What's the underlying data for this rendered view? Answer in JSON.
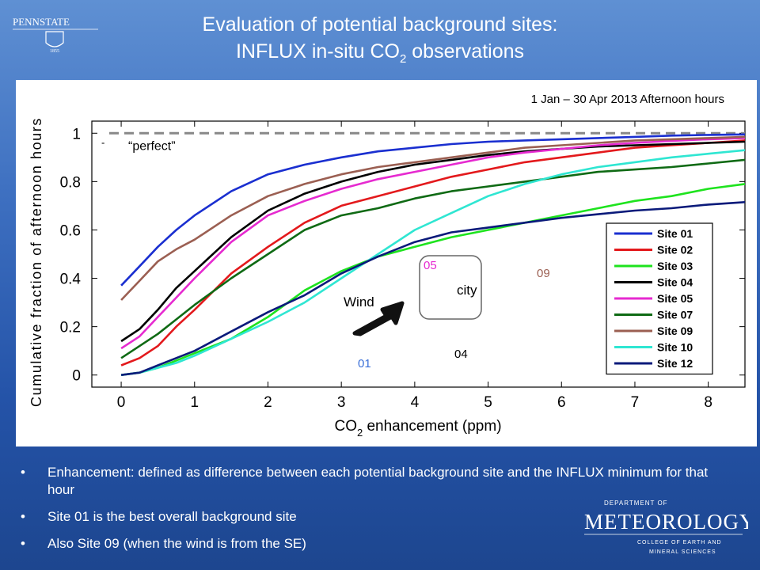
{
  "title": {
    "line1": "Evaluation of potential background sites:",
    "line2_pre": "INFLUX in-situ CO",
    "line2_sub": "2",
    "line2_post": " observations"
  },
  "logos": {
    "pennstate": "PENNSTATE",
    "pennstate_year": "1855",
    "met_dept": "DEPARTMENT OF",
    "met_name": "METEOROLOGY",
    "met_college1": "COLLEGE OF EARTH AND",
    "met_college2": "MINERAL SCIENCES"
  },
  "bullets": [
    "Enhancement: defined as difference between each potential background site and the INFLUX minimum for that hour",
    "Site 01 is the best overall background site",
    "Also Site 09 (when the wind is from the SE)"
  ],
  "chart_data": {
    "type": "line",
    "subtitle": "1 Jan – 30 Apr 2013 Afternoon hours",
    "xlabel_pre": "CO",
    "xlabel_sub": "2",
    "xlabel_post": " enhancement (ppm)",
    "ylabel": "Cumulative fraction of afternoon hours",
    "xlim": [
      -0.4,
      8.5
    ],
    "ylim": [
      -0.05,
      1.05
    ],
    "xticks": [
      0,
      1,
      2,
      3,
      4,
      5,
      6,
      7,
      8
    ],
    "yticks": [
      0,
      0.2,
      0.4,
      0.6,
      0.8,
      1
    ],
    "ytick_labels": [
      "0",
      "0.2",
      "0.4",
      "0.6",
      "0.8",
      "1"
    ],
    "perfect_label": "“perfect”",
    "perfect_dash": "-",
    "perfect_value": 1,
    "legend_position": "lower-right",
    "x": [
      0,
      0.25,
      0.5,
      0.75,
      1,
      1.5,
      2,
      2.5,
      3,
      3.5,
      4,
      4.5,
      5,
      5.5,
      6,
      6.5,
      7,
      7.5,
      8,
      8.5
    ],
    "series": [
      {
        "name": "Site 01",
        "color": "#1a2fd0",
        "values": [
          0.37,
          0.45,
          0.53,
          0.6,
          0.66,
          0.76,
          0.83,
          0.87,
          0.9,
          0.925,
          0.94,
          0.955,
          0.965,
          0.97,
          0.975,
          0.98,
          0.985,
          0.99,
          0.993,
          0.995
        ]
      },
      {
        "name": "Site 02",
        "color": "#e3191c",
        "values": [
          0.04,
          0.07,
          0.12,
          0.2,
          0.27,
          0.42,
          0.53,
          0.63,
          0.7,
          0.74,
          0.78,
          0.82,
          0.85,
          0.88,
          0.9,
          0.92,
          0.94,
          0.95,
          0.96,
          0.97
        ]
      },
      {
        "name": "Site 03",
        "color": "#1ee31e",
        "values": [
          0.0,
          0.01,
          0.03,
          0.06,
          0.09,
          0.15,
          0.24,
          0.35,
          0.43,
          0.49,
          0.53,
          0.57,
          0.6,
          0.63,
          0.66,
          0.69,
          0.72,
          0.74,
          0.77,
          0.79
        ]
      },
      {
        "name": "Site 04",
        "color": "#000000",
        "values": [
          0.14,
          0.19,
          0.27,
          0.36,
          0.43,
          0.57,
          0.68,
          0.75,
          0.8,
          0.84,
          0.87,
          0.89,
          0.91,
          0.925,
          0.935,
          0.945,
          0.95,
          0.955,
          0.96,
          0.965
        ]
      },
      {
        "name": "Site 05",
        "color": "#e62ad0",
        "values": [
          0.11,
          0.16,
          0.24,
          0.32,
          0.4,
          0.55,
          0.66,
          0.72,
          0.77,
          0.81,
          0.84,
          0.87,
          0.9,
          0.92,
          0.935,
          0.95,
          0.96,
          0.968,
          0.975,
          0.98
        ]
      },
      {
        "name": "Site 07",
        "color": "#0f6a14",
        "values": [
          0.07,
          0.12,
          0.17,
          0.23,
          0.29,
          0.4,
          0.5,
          0.6,
          0.66,
          0.69,
          0.73,
          0.76,
          0.78,
          0.8,
          0.82,
          0.84,
          0.85,
          0.86,
          0.875,
          0.89
        ]
      },
      {
        "name": "Site 09",
        "color": "#9b5f52",
        "values": [
          0.31,
          0.39,
          0.47,
          0.52,
          0.56,
          0.66,
          0.74,
          0.79,
          0.83,
          0.86,
          0.88,
          0.9,
          0.92,
          0.94,
          0.95,
          0.96,
          0.97,
          0.975,
          0.98,
          0.985
        ]
      },
      {
        "name": "Site 10",
        "color": "#2fe6d2",
        "values": [
          0.0,
          0.01,
          0.03,
          0.05,
          0.08,
          0.15,
          0.22,
          0.3,
          0.4,
          0.5,
          0.6,
          0.67,
          0.74,
          0.79,
          0.83,
          0.86,
          0.88,
          0.9,
          0.915,
          0.93
        ]
      },
      {
        "name": "Site 12",
        "color": "#0a1a7a",
        "values": [
          0.0,
          0.01,
          0.04,
          0.07,
          0.1,
          0.18,
          0.26,
          0.33,
          0.42,
          0.49,
          0.55,
          0.59,
          0.61,
          0.63,
          0.65,
          0.665,
          0.68,
          0.69,
          0.705,
          0.715
        ]
      }
    ],
    "inset": {
      "wind_label": "Wind",
      "city_label": "city",
      "sites": [
        {
          "label": "05",
          "color": "#e62ad0"
        },
        {
          "label": "09",
          "color": "#9b5f52"
        },
        {
          "label": "04",
          "color": "#000000"
        },
        {
          "label": "01",
          "color": "#3a6fd8"
        }
      ]
    }
  }
}
